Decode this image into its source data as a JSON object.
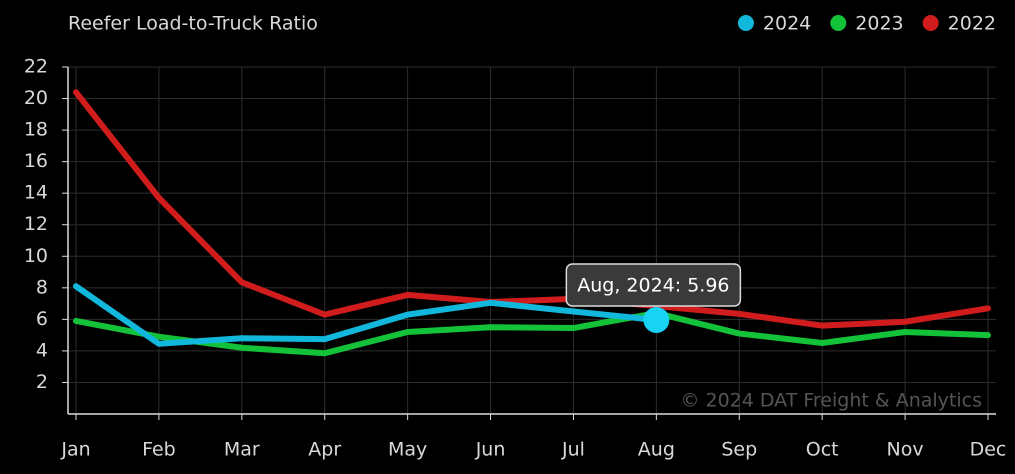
{
  "chart_data": {
    "type": "line",
    "title": "Reefer Load-to-Truck Ratio",
    "categories": [
      "Jan",
      "Feb",
      "Mar",
      "Apr",
      "May",
      "Jun",
      "Jul",
      "Aug",
      "Sep",
      "Oct",
      "Nov",
      "Dec"
    ],
    "series": [
      {
        "name": "2024",
        "color": "#12b8dc",
        "values": [
          8.1,
          4.45,
          4.8,
          4.75,
          6.3,
          7.05,
          6.5,
          5.96,
          null,
          null,
          null,
          null
        ]
      },
      {
        "name": "2023",
        "color": "#14c23a",
        "values": [
          5.9,
          4.9,
          4.2,
          3.85,
          5.2,
          5.5,
          5.45,
          6.4,
          5.1,
          4.5,
          5.2,
          5.0
        ]
      },
      {
        "name": "2022",
        "color": "#d01c1c",
        "values": [
          20.4,
          13.7,
          8.35,
          6.3,
          7.55,
          7.1,
          7.3,
          6.85,
          6.35,
          5.6,
          5.85,
          6.7
        ]
      }
    ],
    "ylim": [
      0,
      22
    ],
    "yticks": [
      2,
      4,
      6,
      8,
      10,
      12,
      14,
      16,
      18,
      20,
      22
    ],
    "grid": true,
    "legend": "top-right",
    "tooltip": "Aug, 2024: 5.96",
    "credit": "© 2024 DAT Freight & Analytics"
  }
}
